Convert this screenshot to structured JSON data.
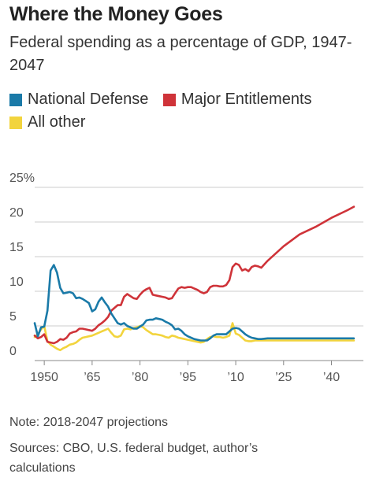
{
  "header": {
    "title": "Where the Money Goes",
    "subtitle": "Federal spending as a percentage of GDP, 1947-2047"
  },
  "legend": [
    {
      "label": "National Defense",
      "color": "#1a7aa8"
    },
    {
      "label": "Major Entitlements",
      "color": "#cf3339"
    },
    {
      "label": "All other",
      "color": "#f2d43d"
    }
  ],
  "footer": {
    "note": "Note: 2018-2047 projections",
    "sources": "Sources: CBO, U.S. federal budget, author’s calculations"
  },
  "chart_data": {
    "type": "line",
    "ylim": [
      0,
      25
    ],
    "xlim": [
      1947,
      2050
    ],
    "grid": true,
    "y_ticks": [
      {
        "value": 25,
        "label": "25%"
      },
      {
        "value": 20,
        "label": "20"
      },
      {
        "value": 15,
        "label": "15"
      },
      {
        "value": 10,
        "label": "10"
      },
      {
        "value": 5,
        "label": "5"
      },
      {
        "value": 0,
        "label": "0"
      }
    ],
    "x_ticks": [
      {
        "value": 1950,
        "label": "1950"
      },
      {
        "value": 1965,
        "label": "’65"
      },
      {
        "value": 1980,
        "label": "’80"
      },
      {
        "value": 1995,
        "label": "’95"
      },
      {
        "value": 2010,
        "label": "’10"
      },
      {
        "value": 2025,
        "label": "’25"
      },
      {
        "value": 2040,
        "label": "’40"
      }
    ],
    "series": [
      {
        "name": "National Defense",
        "color": "#1a7aa8",
        "x": [
          1947,
          1948,
          1949,
          1950,
          1951,
          1952,
          1953,
          1954,
          1955,
          1956,
          1957,
          1958,
          1959,
          1960,
          1961,
          1962,
          1963,
          1964,
          1965,
          1966,
          1967,
          1968,
          1969,
          1970,
          1971,
          1972,
          1973,
          1974,
          1975,
          1976,
          1977,
          1978,
          1979,
          1980,
          1981,
          1982,
          1983,
          1984,
          1985,
          1986,
          1987,
          1988,
          1989,
          1990,
          1991,
          1992,
          1993,
          1994,
          1995,
          1996,
          1997,
          1998,
          1999,
          2000,
          2001,
          2002,
          2003,
          2004,
          2005,
          2006,
          2007,
          2008,
          2009,
          2010,
          2011,
          2012,
          2013,
          2014,
          2015,
          2016,
          2017,
          2018,
          2020,
          2025,
          2030,
          2035,
          2040,
          2045,
          2047
        ],
        "y": [
          5.4,
          3.5,
          4.8,
          4.9,
          7.2,
          13.0,
          13.8,
          12.7,
          10.5,
          9.7,
          9.8,
          9.9,
          9.7,
          9.0,
          9.1,
          8.9,
          8.6,
          8.3,
          7.1,
          7.4,
          8.5,
          9.1,
          8.4,
          7.8,
          6.8,
          6.1,
          5.4,
          5.2,
          5.4,
          5.0,
          4.8,
          4.6,
          4.6,
          4.9,
          5.2,
          5.8,
          5.9,
          5.9,
          6.1,
          6.0,
          5.9,
          5.6,
          5.4,
          5.1,
          4.5,
          4.6,
          4.3,
          3.8,
          3.5,
          3.3,
          3.1,
          3.0,
          2.9,
          2.9,
          2.9,
          3.2,
          3.6,
          3.8,
          3.8,
          3.8,
          3.8,
          4.2,
          4.6,
          4.7,
          4.6,
          4.2,
          3.8,
          3.5,
          3.3,
          3.2,
          3.1,
          3.1,
          3.2,
          3.2,
          3.2,
          3.2,
          3.2,
          3.2,
          3.2
        ]
      },
      {
        "name": "Major Entitlements",
        "color": "#cf3339",
        "x": [
          1947,
          1948,
          1949,
          1950,
          1951,
          1952,
          1953,
          1954,
          1955,
          1956,
          1957,
          1958,
          1959,
          1960,
          1961,
          1962,
          1963,
          1964,
          1965,
          1966,
          1967,
          1968,
          1969,
          1970,
          1971,
          1972,
          1973,
          1974,
          1975,
          1976,
          1977,
          1978,
          1979,
          1980,
          1981,
          1982,
          1983,
          1984,
          1985,
          1986,
          1987,
          1988,
          1989,
          1990,
          1991,
          1992,
          1993,
          1994,
          1995,
          1996,
          1997,
          1998,
          1999,
          2000,
          2001,
          2002,
          2003,
          2004,
          2005,
          2006,
          2007,
          2008,
          2009,
          2010,
          2011,
          2012,
          2013,
          2014,
          2015,
          2016,
          2017,
          2018,
          2020,
          2025,
          2030,
          2035,
          2040,
          2045,
          2047
        ],
        "y": [
          3.6,
          3.2,
          3.4,
          3.8,
          2.7,
          2.6,
          2.5,
          2.7,
          3.1,
          3.0,
          3.3,
          3.9,
          4.1,
          4.2,
          4.6,
          4.6,
          4.5,
          4.4,
          4.3,
          4.6,
          5.1,
          5.4,
          5.8,
          6.3,
          7.2,
          7.6,
          8.0,
          8.0,
          9.2,
          9.6,
          9.3,
          9.0,
          8.9,
          9.5,
          10.0,
          10.3,
          10.5,
          9.5,
          9.4,
          9.3,
          9.2,
          9.1,
          8.9,
          9.0,
          9.7,
          10.4,
          10.6,
          10.5,
          10.6,
          10.6,
          10.4,
          10.2,
          9.9,
          9.7,
          9.9,
          10.6,
          10.8,
          10.8,
          10.7,
          10.7,
          10.9,
          11.6,
          13.5,
          14.0,
          13.8,
          13.0,
          13.2,
          12.9,
          13.5,
          13.7,
          13.6,
          13.4,
          14.4,
          16.5,
          18.2,
          19.3,
          20.6,
          21.7,
          22.2
        ]
      },
      {
        "name": "All other",
        "color": "#f2d43d",
        "x": [
          1947,
          1948,
          1949,
          1950,
          1951,
          1952,
          1953,
          1954,
          1955,
          1956,
          1957,
          1958,
          1959,
          1960,
          1961,
          1962,
          1963,
          1964,
          1965,
          1966,
          1967,
          1968,
          1969,
          1970,
          1971,
          1972,
          1973,
          1974,
          1975,
          1976,
          1977,
          1978,
          1979,
          1980,
          1981,
          1982,
          1983,
          1984,
          1985,
          1986,
          1987,
          1988,
          1989,
          1990,
          1991,
          1992,
          1993,
          1994,
          1995,
          1996,
          1997,
          1998,
          1999,
          2000,
          2001,
          2002,
          2003,
          2004,
          2005,
          2006,
          2007,
          2008,
          2009,
          2010,
          2011,
          2012,
          2013,
          2014,
          2015,
          2016,
          2017,
          2018,
          2020,
          2025,
          2030,
          2035,
          2040,
          2045,
          2047
        ],
        "y": [
          3.4,
          3.8,
          4.5,
          5.0,
          2.8,
          2.3,
          2.0,
          1.7,
          1.5,
          1.8,
          2.0,
          2.3,
          2.4,
          2.6,
          3.0,
          3.3,
          3.4,
          3.5,
          3.6,
          3.8,
          4.0,
          4.2,
          4.4,
          4.6,
          4.0,
          3.5,
          3.4,
          3.6,
          4.5,
          4.6,
          4.5,
          4.7,
          4.8,
          5.0,
          4.8,
          4.4,
          4.1,
          3.8,
          3.8,
          3.7,
          3.6,
          3.4,
          3.3,
          3.6,
          3.5,
          3.3,
          3.2,
          3.1,
          3.0,
          2.9,
          2.8,
          2.7,
          2.6,
          2.7,
          3.1,
          3.4,
          3.5,
          3.4,
          3.4,
          3.3,
          3.4,
          3.6,
          5.4,
          3.9,
          3.7,
          3.3,
          2.9,
          2.8,
          2.8,
          2.9,
          2.9,
          2.9,
          2.9,
          2.9,
          2.9,
          2.9,
          2.9,
          2.9,
          2.9
        ]
      }
    ]
  }
}
